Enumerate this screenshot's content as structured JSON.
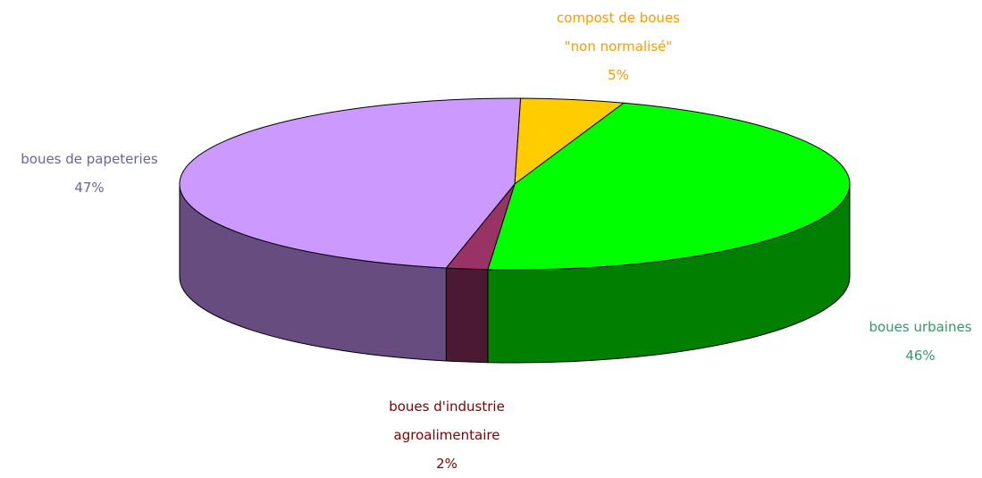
{
  "chart_data": {
    "type": "pie3d",
    "categories": [
      "compost de boues \"non normalisé\"",
      "boues urbaines",
      "boues d'industrie agroalimentaire",
      "boues de papeteries"
    ],
    "values": [
      5,
      46,
      2,
      47
    ],
    "value_labels": [
      "5%",
      "46%",
      "2%",
      "47%"
    ],
    "colors": [
      "#ffcc00",
      "#00ff00",
      "#993366",
      "#cc99ff"
    ],
    "label_colors": [
      "#ff9900",
      "#339966",
      "#800000",
      "#666699"
    ]
  }
}
